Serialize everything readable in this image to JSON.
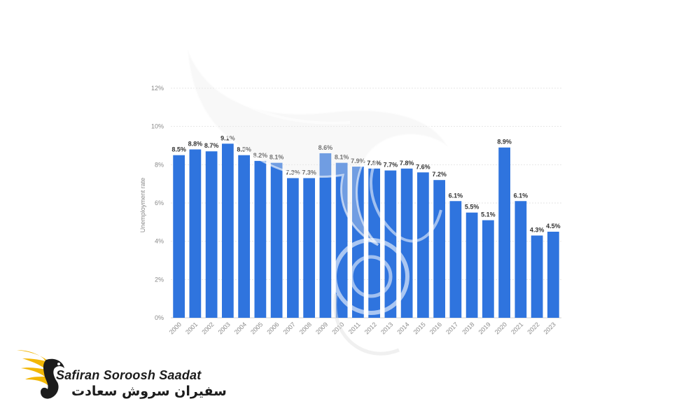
{
  "chart_data": {
    "type": "bar",
    "title": "",
    "xlabel": "",
    "ylabel": "Unemployment rate",
    "ylim": [
      0,
      12
    ],
    "yticks": [
      "0%",
      "2%",
      "4%",
      "6%",
      "8%",
      "10%",
      "12%"
    ],
    "grid": true,
    "bar_color": "#2f74de",
    "categories": [
      "2000",
      "2001",
      "2002",
      "2003",
      "2004",
      "2005",
      "2006",
      "2007",
      "2008",
      "2009",
      "2010",
      "2011",
      "2012",
      "2013",
      "2014",
      "2015",
      "2016",
      "2017",
      "2018",
      "2019",
      "2020",
      "2021",
      "2022",
      "2023"
    ],
    "values": [
      8.5,
      8.8,
      8.7,
      9.1,
      8.5,
      8.2,
      8.1,
      7.3,
      7.3,
      8.6,
      8.1,
      7.9,
      7.8,
      7.7,
      7.8,
      7.6,
      7.2,
      6.1,
      5.5,
      5.1,
      8.9,
      6.1,
      4.3,
      4.5
    ],
    "data_labels": [
      "8.5%",
      "8.8%",
      "8.7%",
      "9.1%",
      "8.5%",
      "8.2%",
      "8.1%",
      "7.3%",
      "7.3%",
      "8.6%",
      "8.1%",
      "7.9%",
      "7.8%",
      "7.7%",
      "7.8%",
      "7.6%",
      "7.2%",
      "6.1%",
      "5.5%",
      "5.1%",
      "8.9%",
      "6.1%",
      "4.3%",
      "4.5%"
    ]
  },
  "logo": {
    "name_en": "Safiran Soroosh Saadat",
    "name_fa": "سفیران سروش سعادت",
    "colors": {
      "gold": "#f2b705",
      "dark": "#1c1c1c"
    },
    "icon": "phoenix-bird-icon"
  }
}
